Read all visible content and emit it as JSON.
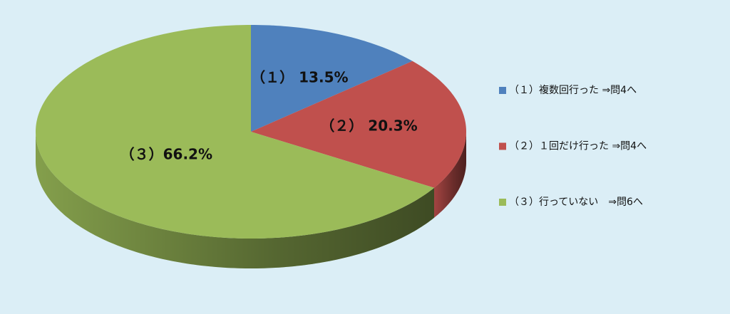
{
  "chart_data": {
    "type": "pie",
    "categories": [
      "（１）複数回行った ⇒問4へ",
      "（２）１回だけ行った ⇒問4へ",
      "（３）行っていない　⇒問6へ"
    ],
    "values": [
      13.5,
      20.3,
      66.2
    ],
    "value_labels": [
      "（１） 13.5%",
      "（２） 20.3%",
      "（３）66.2%"
    ],
    "colors": [
      "#4f81bd",
      "#c0504d",
      "#9bbb59"
    ],
    "legend": "right"
  }
}
